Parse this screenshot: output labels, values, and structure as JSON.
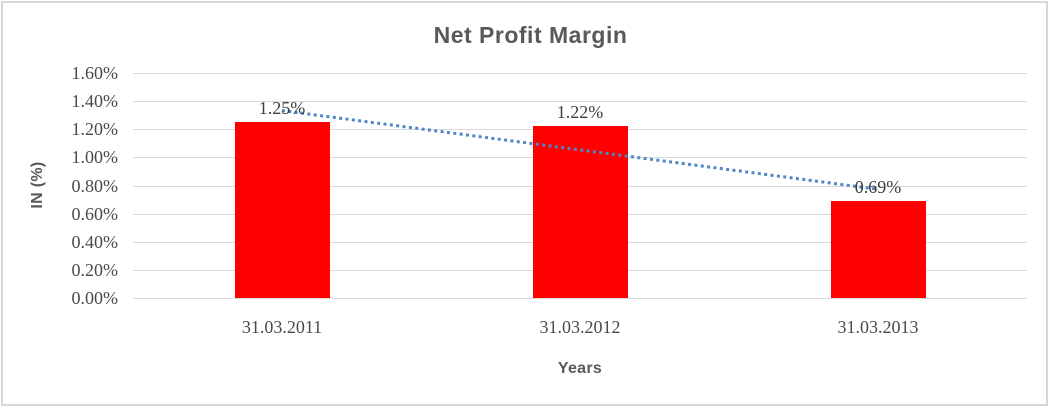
{
  "figure": {
    "title": "Net Profit Margin",
    "y_axis_title": "IN (%)",
    "x_axis_title": "Years"
  },
  "chart_data": {
    "type": "bar",
    "title": "Net Profit Margin",
    "xlabel": "Years",
    "ylabel": "IN (%)",
    "categories": [
      "31.03.2011",
      "31.03.2012",
      "31.03.2013"
    ],
    "values": [
      1.25,
      1.22,
      0.69
    ],
    "data_labels": [
      "1.25%",
      "1.22%",
      "0.69%"
    ],
    "yticks": [
      "1.60%",
      "1.40%",
      "1.20%",
      "1.00%",
      "0.80%",
      "0.60%",
      "0.40%",
      "0.20%",
      "0.00%"
    ],
    "ylim": [
      0,
      1.6
    ],
    "ytick_step": 0.2,
    "grid": true,
    "legend": false,
    "bar_color": "#ff0000",
    "trendline": {
      "type": "linear",
      "style": "dotted",
      "color": "#4e86c8",
      "start_value": 1.333,
      "end_value": 0.773
    },
    "colors": {
      "gridline": "#d9d9d9",
      "frame_border": "#d8d8d8",
      "title_text": "#595959",
      "axis_text": "#4a4a4a",
      "background": "#ffffff"
    }
  }
}
